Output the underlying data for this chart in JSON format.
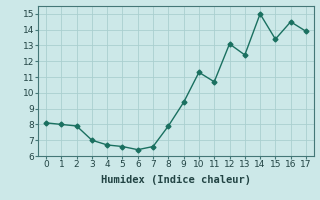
{
  "x": [
    0,
    1,
    2,
    3,
    4,
    5,
    6,
    7,
    8,
    9,
    10,
    11,
    12,
    13,
    14,
    15,
    16,
    17
  ],
  "y": [
    8.1,
    8.0,
    7.9,
    7.0,
    6.7,
    6.6,
    6.4,
    6.6,
    7.9,
    9.4,
    11.3,
    10.7,
    13.1,
    12.4,
    15.0,
    13.4,
    14.5,
    13.9
  ],
  "line_color": "#1a7060",
  "marker": "D",
  "marker_size": 2.5,
  "xlabel": "Humidex (Indice chaleur)",
  "xlabel_fontsize": 7.5,
  "ylim": [
    6,
    15.5
  ],
  "xlim": [
    -0.5,
    17.5
  ],
  "yticks": [
    6,
    7,
    8,
    9,
    10,
    11,
    12,
    13,
    14,
    15
  ],
  "xticks": [
    0,
    1,
    2,
    3,
    4,
    5,
    6,
    7,
    8,
    9,
    10,
    11,
    12,
    13,
    14,
    15,
    16,
    17
  ],
  "background_color": "#cce8e8",
  "grid_color": "#aacfcf",
  "tick_fontsize": 6.5,
  "line_width": 1.0
}
